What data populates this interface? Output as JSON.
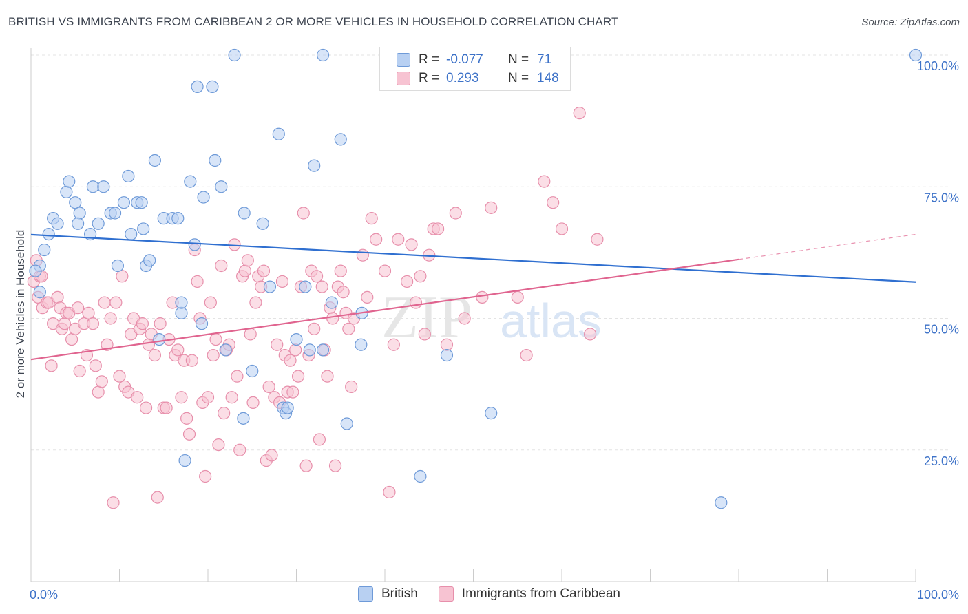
{
  "header": {
    "title": "BRITISH VS IMMIGRANTS FROM CARIBBEAN 2 OR MORE VEHICLES IN HOUSEHOLD CORRELATION CHART",
    "source": "Source: ZipAtlas.com"
  },
  "colors": {
    "british_fill": "#b8d0f2",
    "british_stroke": "#6e9ad8",
    "british_line": "#2f6fd0",
    "caribbean_fill": "#f7c3d2",
    "caribbean_stroke": "#e78fab",
    "caribbean_line": "#e0648f",
    "grid": "#e3e3e3",
    "tick_label": "#3d72c8"
  },
  "legend": {
    "british": {
      "r_label": "R =",
      "r_value": "-0.077",
      "n_label": "N =",
      "n_value": "71"
    },
    "caribbean": {
      "r_label": "R =",
      "r_value": "0.293",
      "n_label": "N =",
      "n_value": "148"
    }
  },
  "watermark": {
    "zip": "ZIP",
    "atlas": "atlas"
  },
  "chart_data": {
    "type": "scatter",
    "title": "BRITISH VS IMMIGRANTS FROM CARIBBEAN 2 OR MORE VEHICLES IN HOUSEHOLD CORRELATION CHART",
    "xlabel": "",
    "ylabel": "2 or more Vehicles in Household",
    "xlim": [
      0,
      100
    ],
    "ylim": [
      0,
      100
    ],
    "x_tick_labels": [
      {
        "value": 0,
        "label": "0.0%"
      },
      {
        "value": 100,
        "label": "100.0%"
      }
    ],
    "y_tick_labels": [
      {
        "value": 25,
        "label": "25.0%"
      },
      {
        "value": 50,
        "label": "50.0%"
      },
      {
        "value": 75,
        "label": "75.0%"
      },
      {
        "value": 100,
        "label": "100.0%"
      }
    ],
    "grid": true,
    "legend_position": "bottom",
    "series": [
      {
        "name": "British",
        "points": [
          [
            1,
            60
          ],
          [
            1.5,
            63
          ],
          [
            2,
            66
          ],
          [
            2.5,
            69
          ],
          [
            3,
            68
          ],
          [
            4,
            74
          ],
          [
            4.3,
            76
          ],
          [
            5,
            72
          ],
          [
            5.5,
            70
          ],
          [
            5.3,
            68
          ],
          [
            7,
            75
          ],
          [
            6.7,
            66
          ],
          [
            7.6,
            68
          ],
          [
            8.2,
            75
          ],
          [
            9,
            70
          ],
          [
            9.5,
            70
          ],
          [
            9.8,
            60
          ],
          [
            10.5,
            72
          ],
          [
            11,
            77
          ],
          [
            11.3,
            66
          ],
          [
            12,
            72
          ],
          [
            12.5,
            72
          ],
          [
            12.7,
            67
          ],
          [
            13,
            60
          ],
          [
            13.4,
            61
          ],
          [
            14,
            80
          ],
          [
            14.5,
            46
          ],
          [
            15,
            69
          ],
          [
            16,
            69
          ],
          [
            16.6,
            69
          ],
          [
            17,
            51
          ],
          [
            17.4,
            23
          ],
          [
            18,
            76
          ],
          [
            18.5,
            64
          ],
          [
            18.8,
            94
          ],
          [
            19.3,
            49
          ],
          [
            19.5,
            73
          ],
          [
            20.5,
            94
          ],
          [
            20.8,
            80
          ],
          [
            21.5,
            75
          ],
          [
            22,
            44
          ],
          [
            23,
            100
          ],
          [
            24,
            31
          ],
          [
            24.1,
            70
          ],
          [
            25,
            40
          ],
          [
            26.2,
            68
          ],
          [
            27,
            56
          ],
          [
            28,
            85
          ],
          [
            28.5,
            33
          ],
          [
            28.8,
            32
          ],
          [
            29,
            33
          ],
          [
            30,
            46
          ],
          [
            31,
            56
          ],
          [
            31.5,
            44
          ],
          [
            32,
            79
          ],
          [
            33,
            100
          ],
          [
            34,
            53
          ],
          [
            35,
            84
          ],
          [
            35.7,
            30
          ],
          [
            37.4,
            51
          ],
          [
            37.3,
            45
          ],
          [
            44,
            20
          ],
          [
            47,
            43
          ],
          [
            52,
            32
          ],
          [
            60,
            100
          ],
          [
            78,
            15
          ],
          [
            100,
            100
          ],
          [
            1,
            55
          ],
          [
            0.5,
            59
          ],
          [
            33,
            44
          ],
          [
            17,
            53
          ]
        ]
      },
      {
        "name": "Immigrants from Caribbean",
        "points": [
          [
            0.3,
            57
          ],
          [
            0.8,
            54
          ],
          [
            1,
            58
          ],
          [
            1.3,
            52
          ],
          [
            1.8,
            53
          ],
          [
            2,
            53
          ],
          [
            2.3,
            41
          ],
          [
            2.5,
            49
          ],
          [
            3,
            54
          ],
          [
            3.3,
            52
          ],
          [
            3.5,
            48
          ],
          [
            3.8,
            49
          ],
          [
            4,
            51
          ],
          [
            4.3,
            51
          ],
          [
            4.6,
            46
          ],
          [
            5,
            48
          ],
          [
            5.3,
            52
          ],
          [
            5.5,
            40
          ],
          [
            6,
            49
          ],
          [
            6.3,
            43
          ],
          [
            6.5,
            51
          ],
          [
            7,
            49
          ],
          [
            7.3,
            41
          ],
          [
            7.6,
            36
          ],
          [
            8,
            38
          ],
          [
            8.3,
            53
          ],
          [
            8.6,
            45
          ],
          [
            9,
            50
          ],
          [
            9.3,
            15
          ],
          [
            9.6,
            53
          ],
          [
            10,
            39
          ],
          [
            10.3,
            58
          ],
          [
            10.6,
            37
          ],
          [
            11,
            36
          ],
          [
            11.3,
            47
          ],
          [
            11.6,
            50
          ],
          [
            12,
            35
          ],
          [
            12.3,
            48
          ],
          [
            12.6,
            49
          ],
          [
            13,
            33
          ],
          [
            13.3,
            45
          ],
          [
            13.6,
            47
          ],
          [
            14,
            43
          ],
          [
            14.3,
            16
          ],
          [
            14.6,
            49
          ],
          [
            15,
            33
          ],
          [
            15.3,
            33
          ],
          [
            15.6,
            46
          ],
          [
            16,
            53
          ],
          [
            16.3,
            43
          ],
          [
            16.6,
            44
          ],
          [
            17,
            35
          ],
          [
            17.3,
            42
          ],
          [
            17.6,
            31
          ],
          [
            17.9,
            28
          ],
          [
            18.2,
            42
          ],
          [
            18.5,
            63
          ],
          [
            18.8,
            57
          ],
          [
            19.1,
            50
          ],
          [
            19.4,
            34
          ],
          [
            19.7,
            20
          ],
          [
            20,
            35
          ],
          [
            20.3,
            53
          ],
          [
            20.6,
            43
          ],
          [
            20.9,
            46
          ],
          [
            21.2,
            26
          ],
          [
            21.5,
            60
          ],
          [
            21.8,
            32
          ],
          [
            22.1,
            44
          ],
          [
            22.4,
            45
          ],
          [
            22.7,
            35
          ],
          [
            23,
            64
          ],
          [
            23.3,
            39
          ],
          [
            23.6,
            25
          ],
          [
            23.9,
            58
          ],
          [
            24.2,
            59
          ],
          [
            24.5,
            61
          ],
          [
            24.8,
            47
          ],
          [
            25.1,
            34
          ],
          [
            25.4,
            53
          ],
          [
            25.7,
            58
          ],
          [
            26,
            56
          ],
          [
            26.3,
            59
          ],
          [
            26.6,
            23
          ],
          [
            26.9,
            37
          ],
          [
            27.2,
            24
          ],
          [
            27.5,
            35
          ],
          [
            27.8,
            45
          ],
          [
            28.1,
            34
          ],
          [
            28.4,
            57
          ],
          [
            28.7,
            43
          ],
          [
            29,
            36
          ],
          [
            29.3,
            42
          ],
          [
            29.6,
            36
          ],
          [
            29.9,
            44
          ],
          [
            30.2,
            39
          ],
          [
            30.5,
            56
          ],
          [
            30.8,
            70
          ],
          [
            31.1,
            22
          ],
          [
            31.4,
            43
          ],
          [
            31.7,
            59
          ],
          [
            32,
            48
          ],
          [
            32.3,
            58
          ],
          [
            32.6,
            27
          ],
          [
            32.9,
            56
          ],
          [
            33.2,
            44
          ],
          [
            33.5,
            39
          ],
          [
            33.8,
            52
          ],
          [
            34.1,
            50
          ],
          [
            34.4,
            22
          ],
          [
            34.7,
            56
          ],
          [
            35,
            59
          ],
          [
            35.3,
            55
          ],
          [
            35.6,
            51
          ],
          [
            35.9,
            48
          ],
          [
            36.2,
            37
          ],
          [
            36.5,
            50
          ],
          [
            37.5,
            62
          ],
          [
            38,
            54
          ],
          [
            38.5,
            69
          ],
          [
            39,
            65
          ],
          [
            40,
            59
          ],
          [
            40.5,
            17
          ],
          [
            41,
            45
          ],
          [
            41.5,
            65
          ],
          [
            42.5,
            57
          ],
          [
            43,
            64
          ],
          [
            43.5,
            53
          ],
          [
            44,
            58
          ],
          [
            44.5,
            47
          ],
          [
            45,
            62
          ],
          [
            45.5,
            67
          ],
          [
            46,
            67
          ],
          [
            47,
            45
          ],
          [
            48,
            70
          ],
          [
            49,
            50
          ],
          [
            51,
            54
          ],
          [
            52,
            71
          ],
          [
            55,
            54
          ],
          [
            56,
            43
          ],
          [
            58,
            76
          ],
          [
            59,
            72
          ],
          [
            60,
            67
          ],
          [
            62,
            89
          ],
          [
            63.2,
            47
          ],
          [
            64,
            65
          ],
          [
            1.2,
            58
          ],
          [
            0.6,
            61
          ]
        ]
      }
    ],
    "trendlines": [
      {
        "series": "British",
        "x": [
          0,
          100
        ],
        "y": [
          65.9,
          56.9
        ]
      },
      {
        "series": "Immigrants from Caribbean",
        "x": [
          0,
          80
        ],
        "y": [
          42.2,
          61.2
        ],
        "dashed_extension": [
          80,
          100
        ]
      }
    ]
  }
}
